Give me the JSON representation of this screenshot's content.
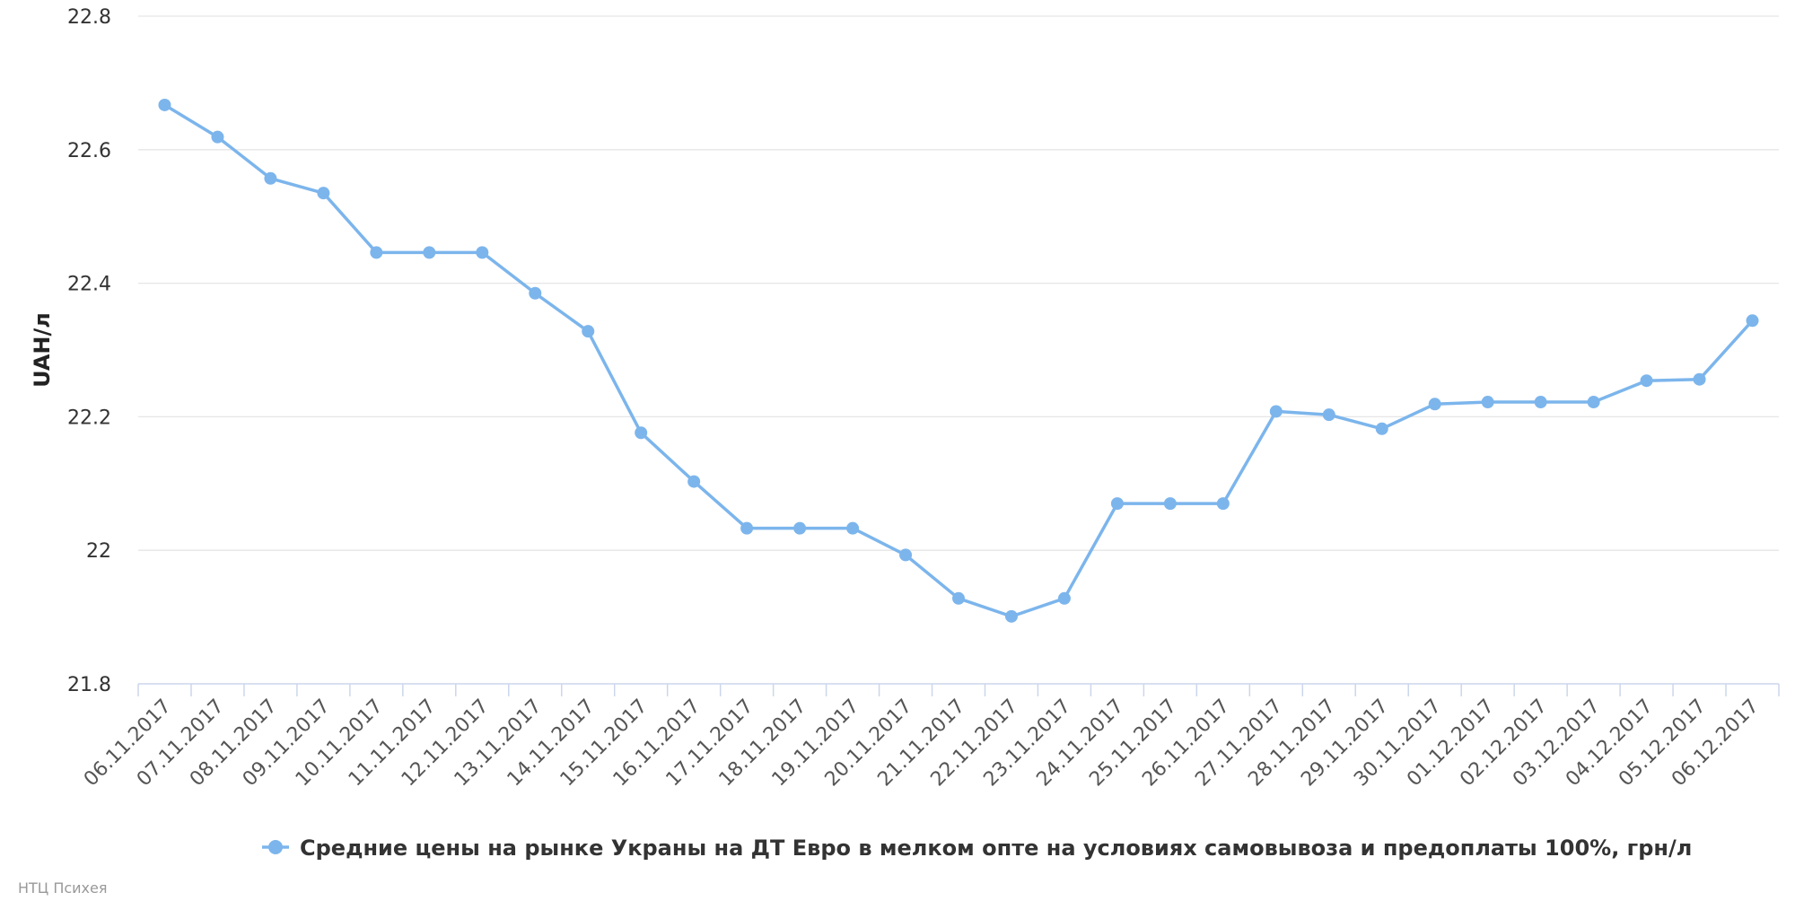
{
  "chart_data": {
    "type": "line",
    "ylabel": "UAH/л",
    "ylim": [
      21.8,
      22.8
    ],
    "yticks": [
      21.8,
      22,
      22.2,
      22.4,
      22.6,
      22.8
    ],
    "ytick_labels": [
      "21.8",
      "22",
      "22.2",
      "22.4",
      "22.6",
      "22.8"
    ],
    "grid": true,
    "legend_position": "bottom-center",
    "categories": [
      "06.11.2017",
      "07.11.2017",
      "08.11.2017",
      "09.11.2017",
      "10.11.2017",
      "11.11.2017",
      "12.11.2017",
      "13.11.2017",
      "14.11.2017",
      "15.11.2017",
      "16.11.2017",
      "17.11.2017",
      "18.11.2017",
      "19.11.2017",
      "20.11.2017",
      "21.11.2017",
      "22.11.2017",
      "23.11.2017",
      "24.11.2017",
      "25.11.2017",
      "26.11.2017",
      "27.11.2017",
      "28.11.2017",
      "29.11.2017",
      "30.11.2017",
      "01.12.2017",
      "02.12.2017",
      "03.12.2017",
      "04.12.2017",
      "05.12.2017",
      "06.12.2017"
    ],
    "series": [
      {
        "name": "Средние цены на рынке Украны на ДТ Евро в мелком опте на условиях самовывоза и предоплаты 100%, грн/л",
        "color": "#7cb5ec",
        "values": [
          22.667,
          22.619,
          22.557,
          22.535,
          22.446,
          22.446,
          22.446,
          22.385,
          22.328,
          22.176,
          22.103,
          22.033,
          22.033,
          22.033,
          21.993,
          21.928,
          21.901,
          21.928,
          22.07,
          22.07,
          22.07,
          22.208,
          22.203,
          22.182,
          22.219,
          22.222,
          22.222,
          22.222,
          22.254,
          22.256,
          22.344
        ]
      }
    ]
  },
  "credits": "НТЦ Психея"
}
